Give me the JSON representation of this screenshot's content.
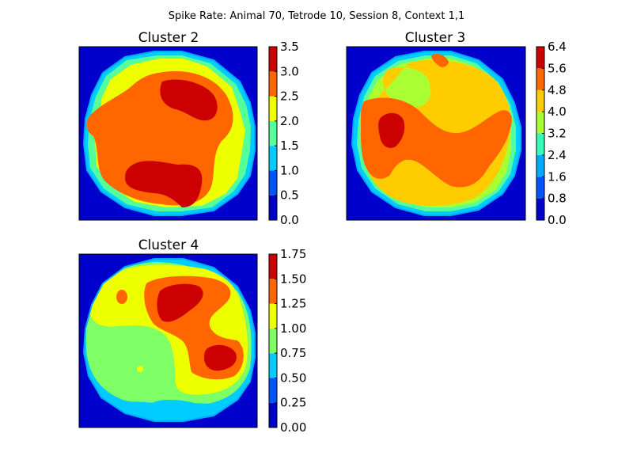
{
  "suptitle": "Spike Rate: Animal 70, Tetrode 10, Session 8, Context 1,1",
  "colors": {
    "background_floor": "#0000cc",
    "levels": [
      "#0000cc",
      "#0055ff",
      "#00ccff",
      "#55ff99",
      "#eeff00",
      "#ff6600",
      "#cc0000"
    ],
    "boundary_ring": "#00aaff",
    "axes_frame": "#000000"
  },
  "chart_data": [
    {
      "type": "heatmap",
      "subtype": "filled-contour",
      "title": "Cluster 2",
      "colorbar_ticks": [
        "0.0",
        "0.5",
        "1.0",
        "1.5",
        "2.0",
        "2.5",
        "3.0",
        "3.5"
      ],
      "levels": [
        0.0,
        0.5,
        1.0,
        1.5,
        2.0,
        2.5,
        3.0,
        3.5
      ],
      "xticks_labeled": false,
      "yticks_labeled": false,
      "background_level": 0.0,
      "arena": "circular (dodecagonal)",
      "peak_regions": [
        "upper-right",
        "lower-center"
      ]
    },
    {
      "type": "heatmap",
      "subtype": "filled-contour",
      "title": "Cluster 3",
      "colorbar_ticks": [
        "0.0",
        "0.8",
        "1.6",
        "2.4",
        "3.2",
        "4.0",
        "4.8",
        "5.6",
        "6.4"
      ],
      "levels": [
        0.0,
        0.8,
        1.6,
        2.4,
        3.2,
        4.0,
        4.8,
        5.6,
        6.4
      ],
      "xticks_labeled": false,
      "yticks_labeled": false,
      "background_level": 0.0,
      "arena": "circular (dodecagonal)",
      "peak_regions": [
        "left-center",
        "top-center"
      ]
    },
    {
      "type": "heatmap",
      "subtype": "filled-contour",
      "title": "Cluster 4",
      "colorbar_ticks": [
        "0.00",
        "0.25",
        "0.50",
        "0.75",
        "1.00",
        "1.25",
        "1.50",
        "1.75"
      ],
      "levels": [
        0.0,
        0.25,
        0.5,
        0.75,
        1.0,
        1.25,
        1.5,
        1.75
      ],
      "xticks_labeled": false,
      "yticks_labeled": false,
      "background_level": 0.0,
      "arena": "circular (dodecagonal)",
      "peak_regions": [
        "upper-center",
        "right-center"
      ]
    }
  ]
}
